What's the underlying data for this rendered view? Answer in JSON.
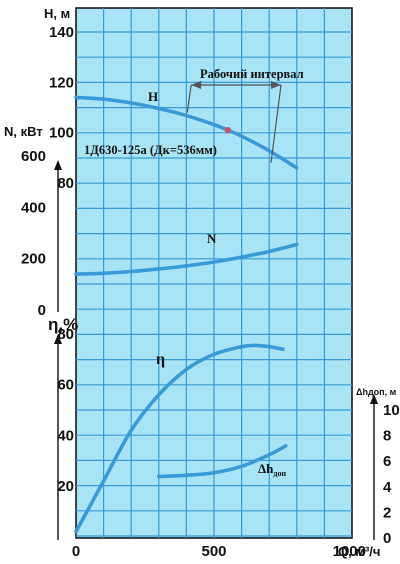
{
  "chart_data": {
    "type": "line",
    "title": "1Д630-125а (Дк=536мм)",
    "xlabel": "Q, м³/ч",
    "x_axis": {
      "min": 0,
      "max": 1000,
      "ticks": [
        "0",
        "500",
        "1000"
      ]
    },
    "axes": {
      "H": {
        "label": "H, м",
        "ticks": [
          "80",
          "100",
          "120",
          "140"
        ]
      },
      "N": {
        "label": "N, кВт",
        "ticks": [
          "0",
          "200",
          "400",
          "600"
        ]
      },
      "eta": {
        "label": "η,%",
        "ticks": [
          "20",
          "40",
          "60",
          "80"
        ]
      },
      "dh": {
        "label": "Δhдоп, м",
        "ticks": [
          "0",
          "2",
          "4",
          "6",
          "8",
          "10"
        ]
      }
    },
    "series": [
      {
        "name": "H",
        "axis": "H",
        "x": [
          0,
          100,
          200,
          300,
          400,
          500,
          550,
          600,
          700,
          800
        ],
        "y": [
          114,
          113.3,
          111.8,
          109.6,
          106.8,
          103.2,
          101,
          98.6,
          92.8,
          86
        ]
      },
      {
        "name": "N",
        "axis": "N",
        "x": [
          0,
          100,
          200,
          300,
          400,
          500,
          600,
          700,
          800
        ],
        "y": [
          140,
          143,
          150,
          160,
          172,
          187,
          206,
          228,
          255
        ]
      },
      {
        "name": "η",
        "axis": "eta",
        "x": [
          0,
          100,
          200,
          300,
          400,
          500,
          600,
          650,
          700,
          750
        ],
        "y": [
          2,
          22,
          42,
          56,
          66,
          72,
          75,
          75.5,
          75,
          74
        ]
      },
      {
        "name": "Δhдоп",
        "axis": "dh",
        "x": [
          300,
          400,
          500,
          600,
          700,
          760
        ],
        "y": [
          4.8,
          4.9,
          5.1,
          5.6,
          6.5,
          7.2
        ]
      }
    ],
    "annotations": {
      "working_range": {
        "label": "Рабочий интервал",
        "x_from": 410,
        "x_to": 750
      },
      "operating_point": {
        "x": 550,
        "y": 101,
        "axis": "H"
      }
    },
    "grid": true
  }
}
